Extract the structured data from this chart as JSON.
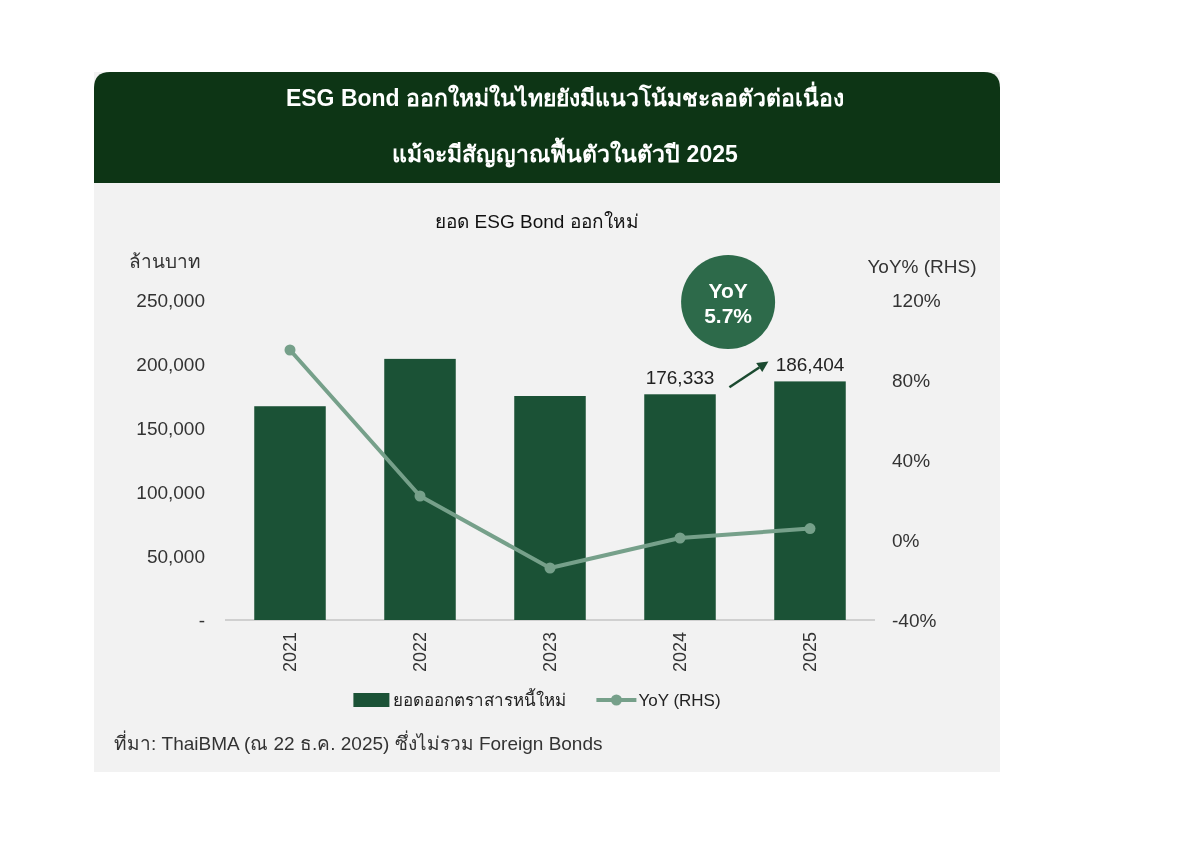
{
  "chart_data": {
    "type": "bar",
    "title": "ESG Bond ออกใหม่ในไทยยังมีแนวโน้มชะลอตัวต่อเนื่อง\nแม้จะมีสัญญาณฟื้นตัวในตัวปี 2025",
    "subtitle": "ยอด ESG Bond ออกใหม่",
    "ylabel": "ล้านบาท",
    "y2label": "YoY% (RHS)",
    "categories": [
      "2021",
      "2022",
      "2023",
      "2024",
      "2025"
    ],
    "series": [
      {
        "name": "ยอดออกตราสารหนี้ใหม่",
        "color": "#1b5236",
        "values": [
          167000,
          204000,
          175000,
          176333,
          186404
        ],
        "value_labels": [
          null,
          null,
          null,
          "176,333",
          "186,404"
        ]
      },
      {
        "name": "YoY (RHS)",
        "type": "line",
        "axis": "y2",
        "color": "#76a08a",
        "marker": "circle",
        "values": [
          95,
          22,
          -14,
          1,
          5.7
        ]
      }
    ],
    "ylim": [
      0,
      250000
    ],
    "yticks": [
      {
        "value": 0,
        "label": "-"
      },
      {
        "value": 50000,
        "label": "50,000"
      },
      {
        "value": 100000,
        "label": "100,000"
      },
      {
        "value": 150000,
        "label": "150,000"
      },
      {
        "value": 200000,
        "label": "200,000"
      },
      {
        "value": 250000,
        "label": "250,000"
      }
    ],
    "y2lim": [
      -40,
      120
    ],
    "y2ticks": [
      {
        "value": -40,
        "label": "-40%"
      },
      {
        "value": 0,
        "label": "0%"
      },
      {
        "value": 40,
        "label": "40%"
      },
      {
        "value": 80,
        "label": "80%"
      },
      {
        "value": 120,
        "label": "120%"
      }
    ],
    "legend": "bottom",
    "annotations": [
      "YoY\n5.7%",
      "ที่มา: ThaiBMA (ณ 22 ธ.ค. 2025) ซึ่งไม่รวม Foreign Bonds"
    ]
  }
}
